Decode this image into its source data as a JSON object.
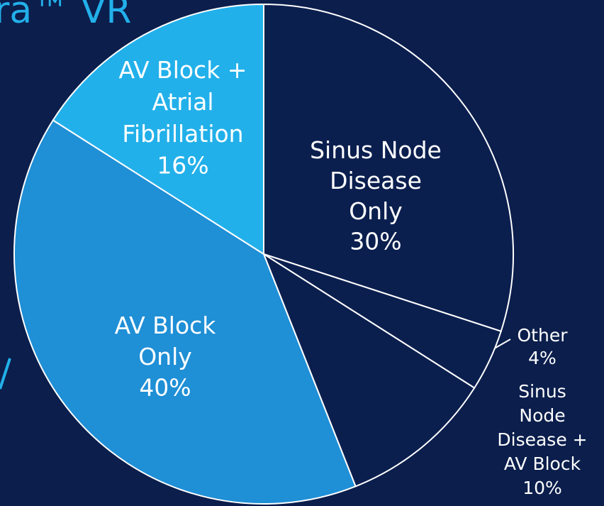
{
  "chart_data": {
    "type": "pie",
    "title": "ra™ VR",
    "categories": [
      "Sinus Node\nDisease\nOnly",
      "Other",
      "Sinus\nNode\nDisease +\nAV Block",
      "AV Block\nOnly",
      "AV Block +\nAtrial\nFibrillation"
    ],
    "values": [
      30,
      4,
      10,
      40,
      16
    ],
    "value_labels": [
      "30%",
      "4%",
      "10%",
      "40%",
      "16%"
    ],
    "colors": [
      "#0b1f4f",
      "#0b1f4f",
      "#0b1f4f",
      "#1f8fd6",
      "#22b0ea"
    ]
  }
}
